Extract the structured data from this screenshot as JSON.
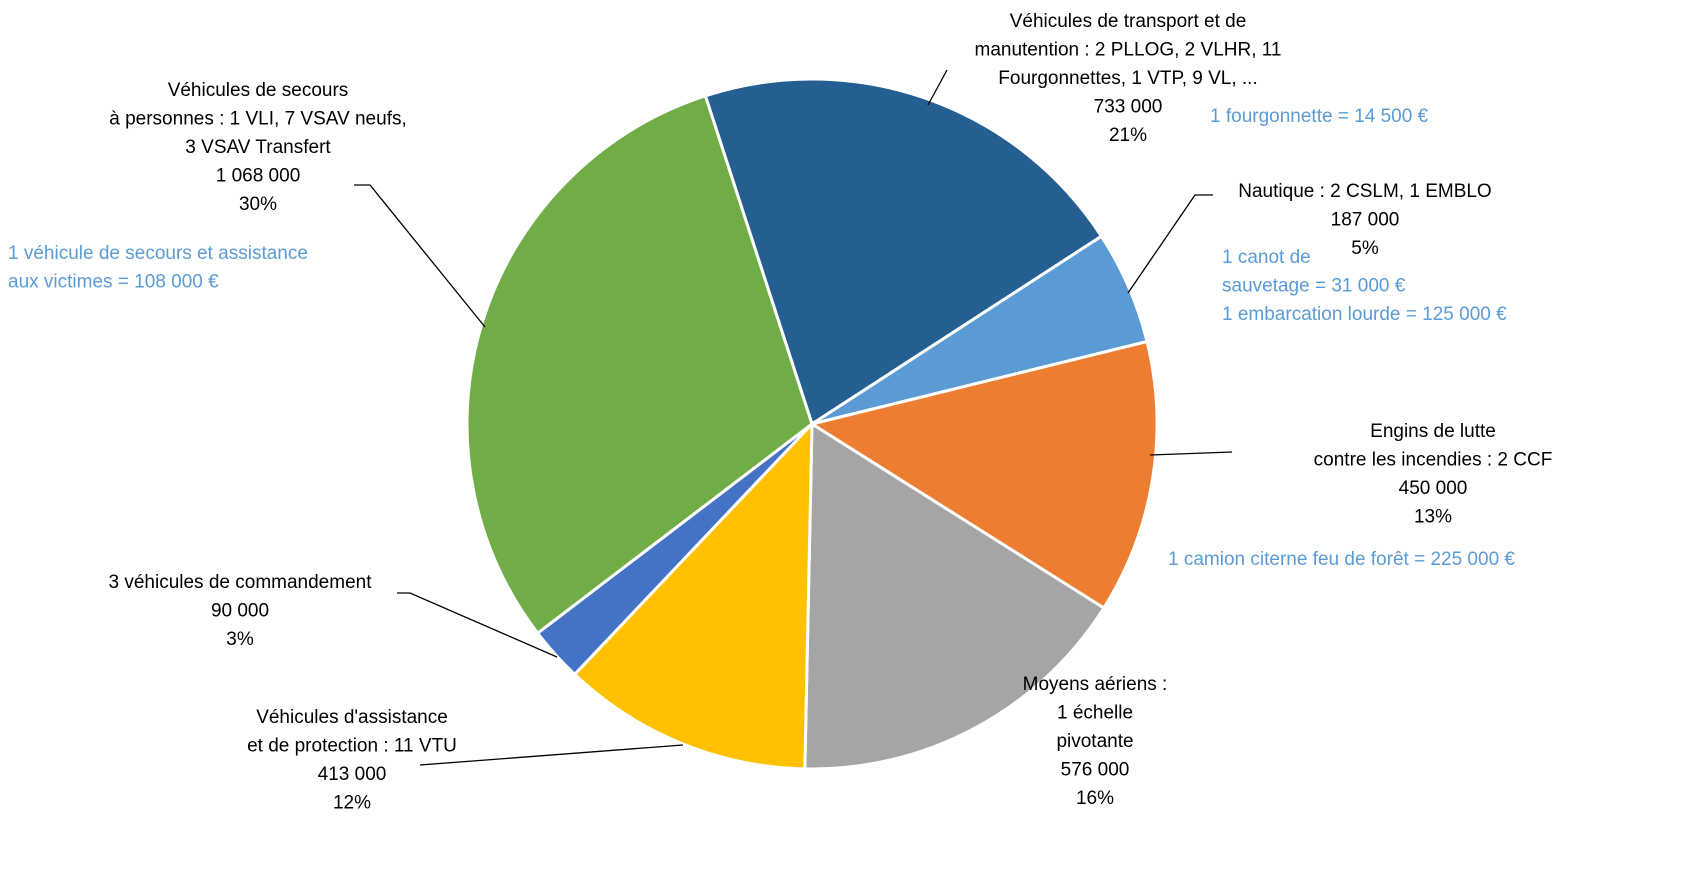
{
  "chart_data": {
    "type": "pie",
    "categories": [
      [
        "Véhicules de transport et de",
        "manutention : 2 PLLOG, 2 VLHR, 11",
        "Fourgonnettes, 1 VTP, 9 VL, ..."
      ],
      [
        "Nautique : 2 CSLM, 1 EMBLO"
      ],
      [
        "Engins de lutte",
        "contre les incendies : 2 CCF"
      ],
      [
        "Moyens aériens :",
        "1 échelle",
        "pivotante"
      ],
      [
        "Véhicules d'assistance",
        "et de protection : 11 VTU"
      ],
      [
        "3 véhicules de commandement"
      ],
      [
        "Véhicules de secours",
        "à personnes : 1 VLI, 7 VSAV neufs,",
        "3 VSAV Transfert"
      ]
    ],
    "values": [
      733000,
      187000,
      450000,
      576000,
      413000,
      90000,
      1068000
    ],
    "value_labels": [
      "733 000",
      "187 000",
      "450 000",
      "576 000",
      "413 000",
      "90 000",
      "1 068 000"
    ],
    "percent_labels": [
      "21%",
      "5%",
      "13%",
      "16%",
      "12%",
      "3%",
      "30%"
    ],
    "colors": [
      "#255e91",
      "#5b9bd5",
      "#ed7d31",
      "#a5a5a5",
      "#ffc000",
      "#4472c4",
      "#70ad47"
    ],
    "annotations": [
      [
        "1 fourgonnette = 14 500 €"
      ],
      [
        "1 canot de",
        "sauvetage = 31 000 €",
        "1 embarcation lourde = 125 000 €"
      ],
      [
        "1 camion citerne feu de forêt = 225 000 €"
      ],
      [
        "1 véhicule de secours et assistance",
        "aux victimes  = 108 000 €"
      ]
    ],
    "annotation_color": "#5b9bd5"
  }
}
